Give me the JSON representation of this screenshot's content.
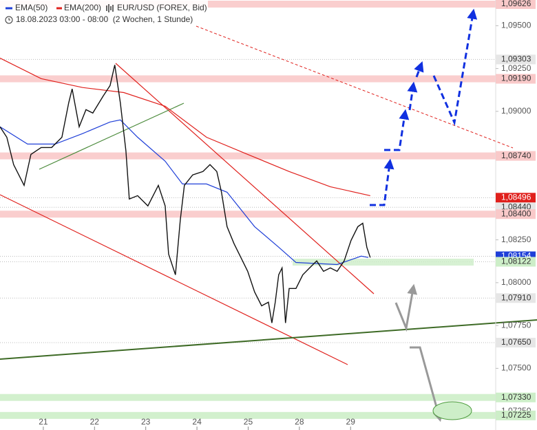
{
  "chart_data": {
    "type": "line",
    "symbol": "EUR/USD (FOREX, Bid)",
    "subtitle": "18.08.2023 03:00 - 08:00  (2 Wochen, 1 Stunde)",
    "xlim": [
      -20.3,
      212
    ],
    "ylim": [
      1.0714,
      1.0965
    ],
    "xticks": [
      {
        "value": 0,
        "label": "21"
      },
      {
        "value": 24,
        "label": "22"
      },
      {
        "value": 48,
        "label": "23"
      },
      {
        "value": 72,
        "label": "24"
      },
      {
        "value": 96,
        "label": "25"
      },
      {
        "value": 120,
        "label": "28"
      },
      {
        "value": 144,
        "label": "29"
      }
    ],
    "yticks": [
      {
        "value": 1.095,
        "label": "1,09500"
      },
      {
        "value": 1.0925,
        "label": "1,09250"
      },
      {
        "value": 1.09,
        "label": "1,09000"
      },
      {
        "value": 1.0825,
        "label": "1,08250"
      },
      {
        "value": 1.08,
        "label": "1,08000"
      },
      {
        "value": 1.0775,
        "label": "1,07750"
      },
      {
        "value": 1.075,
        "label": "1,07500"
      },
      {
        "value": 1.0725,
        "label": "1,07250"
      }
    ],
    "price": {
      "color": "#111111",
      "x": [
        -20.3,
        -17.1,
        -13.9,
        -9.0,
        -5.8,
        -1.0,
        3.9,
        8.7,
        11.9,
        13.5,
        16.8,
        20.0,
        23.2,
        28.1,
        31.3,
        33.5,
        36.1,
        38.7,
        40.3,
        44.2,
        49.0,
        53.9,
        57.1,
        58.7,
        61.9,
        64.2,
        66.1,
        70.0,
        74.8,
        78.1,
        81.3,
        83.5,
        86.1,
        89.4,
        92.6,
        95.8,
        99.0,
        102.3,
        105.5,
        107.1,
        108.7,
        110.3,
        111.9,
        113.5,
        115.2,
        118.4,
        121.6,
        124.8,
        128.1,
        131.3,
        134.5,
        137.7,
        141.0,
        144.2,
        147.4,
        149.7,
        151.6,
        153.2
      ],
      "values": [
        1.0891,
        1.08849,
        1.08689,
        1.08568,
        1.08749,
        1.08789,
        1.08789,
        1.08849,
        1.0905,
        1.09131,
        1.0891,
        1.0901,
        1.0899,
        1.0909,
        1.09151,
        1.09271,
        1.0905,
        1.08769,
        1.08488,
        1.08508,
        1.08448,
        1.08568,
        1.08448,
        1.08167,
        1.08046,
        1.08367,
        1.08568,
        1.08629,
        1.08649,
        1.08689,
        1.08649,
        1.08528,
        1.08327,
        1.08227,
        1.08147,
        1.08066,
        1.07946,
        1.07865,
        1.07886,
        1.07765,
        1.07886,
        1.08046,
        1.08086,
        1.07765,
        1.07966,
        1.07966,
        1.08046,
        1.08086,
        1.08127,
        1.08066,
        1.08086,
        1.08066,
        1.08127,
        1.08247,
        1.08327,
        1.08347,
        1.08207,
        1.08147
      ]
    },
    "series": [
      {
        "name": "EMA(50)",
        "color": "#1f3fd8",
        "x": [
          -20.3,
          -7.4,
          5.5,
          18.4,
          31.3,
          36.1,
          44.2,
          57.1,
          65.2,
          76.5,
          86.1,
          99.0,
          110.3,
          118.4,
          137.7,
          149.0,
          152.3
        ],
        "values": [
          1.0891,
          1.08809,
          1.08809,
          1.0887,
          1.08938,
          1.0895,
          1.08849,
          1.08709,
          1.08576,
          1.08576,
          1.08528,
          1.08327,
          1.08207,
          1.08118,
          1.08106,
          1.08155,
          1.08147
        ]
      },
      {
        "name": "EMA(200)",
        "color": "#e0201c",
        "x": [
          -20.3,
          -1.0,
          18.4,
          37.7,
          57.1,
          76.5,
          95.8,
          115.2,
          134.5,
          153.2
        ],
        "values": [
          1.09311,
          1.09191,
          1.09139,
          1.0911,
          1.0903,
          1.08849,
          1.08749,
          1.08649,
          1.0856,
          1.08508
        ]
      }
    ],
    "levels": [
      {
        "value": 1.09626,
        "label": "1,09626",
        "color": "#f9c9c9",
        "text_color": "#333333",
        "zone": true
      },
      {
        "value": 1.09303,
        "label": "1,09303",
        "color": "#e6e6e6",
        "text_color": "#333333",
        "zone": false
      },
      {
        "value": 1.0919,
        "label": "1,09190",
        "color": "#f9c9c9",
        "text_color": "#333333",
        "zone": true
      },
      {
        "value": 1.0874,
        "label": "1,08740",
        "color": "#f9c9c9",
        "text_color": "#333333",
        "zone": true
      },
      {
        "value": 1.08496,
        "label": "1,08496",
        "color": "#e0201c",
        "text_color": "#ffffff",
        "zone": false
      },
      {
        "value": 1.0844,
        "label": "1,08440",
        "color": "#e6e6e6",
        "text_color": "#333333",
        "zone": false
      },
      {
        "value": 1.084,
        "label": "1,08400",
        "color": "#f9c9c9",
        "text_color": "#333333",
        "zone": true
      },
      {
        "value": 1.08154,
        "label": "1,08154",
        "color": "#1f3fd8",
        "text_color": "#ffffff",
        "zone": false
      },
      {
        "value": 1.08122,
        "label": "1,08122",
        "color": "#cdeec8",
        "text_color": "#333333",
        "zone": false
      },
      {
        "value": 1.0791,
        "label": "1,07910",
        "color": "#e6e6e6",
        "text_color": "#333333",
        "zone": false
      },
      {
        "value": 1.0765,
        "label": "1,07650",
        "color": "#e6e6e6",
        "text_color": "#333333",
        "zone": false
      },
      {
        "value": 1.0733,
        "label": "1,07330",
        "color": "#cdeec8",
        "text_color": "#333333",
        "zone": true
      },
      {
        "value": 1.07225,
        "label": "1,07225",
        "color": "#cdeec8",
        "text_color": "#333333",
        "zone": true
      }
    ]
  }
}
